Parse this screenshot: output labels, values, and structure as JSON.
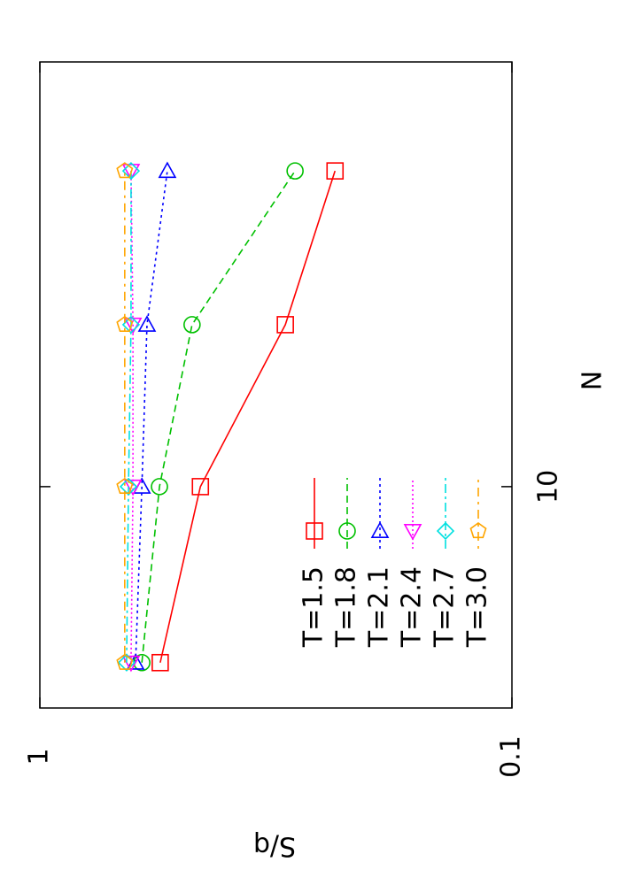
{
  "chart_data": {
    "type": "line",
    "x_label": "N",
    "y_label": "S/q",
    "x": [
      6,
      10,
      16,
      25
    ],
    "xlim": [
      5.26,
      34.3
    ],
    "xticks": [
      10
    ],
    "x_log": true,
    "ylim": [
      0.1,
      1
    ],
    "yticks": [
      1,
      0.1
    ],
    "y_log": true,
    "legend": "bottom left",
    "series": [
      {
        "name": "T=1.5",
        "color": "#ff0000",
        "marker": "square",
        "values": [
          0.556,
          0.457,
          0.302,
          0.237
        ]
      },
      {
        "name": "T=1.8",
        "color": "#00c000",
        "marker": "circle",
        "values": [
          0.608,
          0.558,
          0.476,
          0.288
        ]
      },
      {
        "name": "T=2.1",
        "color": "#0000ff",
        "marker": "triangle-up",
        "values": [
          0.627,
          0.608,
          0.593,
          0.537
        ]
      },
      {
        "name": "T=2.4",
        "color": "#ff00ff",
        "marker": "triangle-down",
        "values": [
          0.641,
          0.635,
          0.635,
          0.641
        ]
      },
      {
        "name": "T=2.7",
        "color": "#00e0e0",
        "marker": "diamond",
        "values": [
          0.655,
          0.649,
          0.641,
          0.641
        ]
      },
      {
        "name": "T=3.0",
        "color": "#ffa500",
        "marker": "pentagon",
        "values": [
          0.661,
          0.661,
          0.661,
          0.661
        ]
      }
    ]
  }
}
